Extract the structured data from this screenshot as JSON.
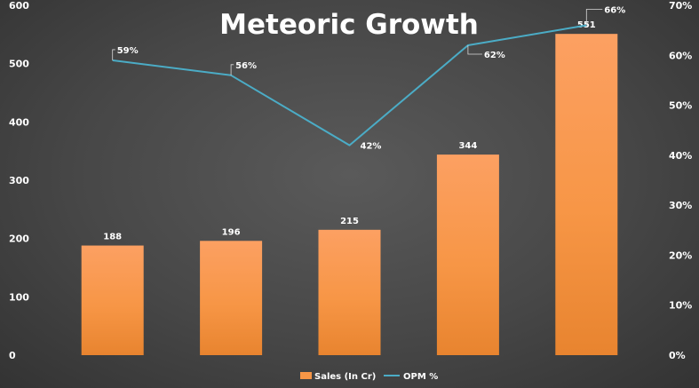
{
  "chart_data": {
    "type": "bar",
    "title": "Meteoric Growth",
    "categories": [
      "",
      "",
      "",
      "",
      ""
    ],
    "series": [
      {
        "name": "Sales (In Cr)",
        "type": "bar",
        "axis": "left",
        "color": "#f79646",
        "values": [
          188,
          196,
          215,
          344,
          551
        ]
      },
      {
        "name": "OPM %",
        "type": "line",
        "axis": "right",
        "color": "#4bacc6",
        "values": [
          59,
          56,
          42,
          62,
          66
        ],
        "value_suffix": "%"
      }
    ],
    "y_left": {
      "ylim": [
        0,
        600
      ],
      "ticks": [
        "0",
        "100",
        "200",
        "300",
        "400",
        "500",
        "600"
      ]
    },
    "y_right": {
      "ylim": [
        0,
        70
      ],
      "ticks": [
        "0%",
        "10%",
        "20%",
        "30%",
        "40%",
        "50%",
        "60%",
        "70%"
      ]
    },
    "grid": false,
    "legend_position": "bottom"
  }
}
